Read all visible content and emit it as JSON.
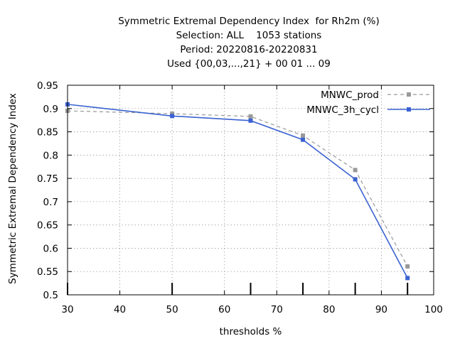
{
  "chart_data": {
    "type": "line",
    "title_lines": [
      "Symmetric Extremal Dependency Index  for Rh2m (%)",
      "Selection: ALL    1053 stations",
      "Period: 20220816-20220831",
      "Used {00,03,...,21} + 00 01 ... 09"
    ],
    "xlabel": "thresholds %",
    "ylabel": "Symmetric Extremal Dependency Index",
    "xlim": [
      30,
      100
    ],
    "ylim": [
      0.5,
      0.95
    ],
    "x_ticks": [
      30,
      40,
      50,
      60,
      70,
      80,
      90,
      100
    ],
    "y_ticks": [
      0.5,
      0.55,
      0.6,
      0.65,
      0.7,
      0.75,
      0.8,
      0.85,
      0.9,
      0.95
    ],
    "y_tick_labels": [
      "0.5",
      "0.55",
      "0.6",
      "0.65",
      "0.7",
      "0.75",
      "0.8",
      "0.85",
      "0.9",
      "0.95"
    ],
    "grid": true,
    "legend_position": "top-right",
    "threshold_markers_x": [
      30,
      50,
      65,
      75,
      85,
      95
    ],
    "series": [
      {
        "name": "MNWC_prod",
        "color": "#999999",
        "dashed": true,
        "x": [
          30,
          50,
          65,
          75,
          85,
          95
        ],
        "y": [
          0.895,
          0.889,
          0.883,
          0.842,
          0.768,
          0.561
        ]
      },
      {
        "name": "MNWC_3h_cycl",
        "color": "#3a62d1",
        "dashed": false,
        "x": [
          30,
          50,
          65,
          75,
          85,
          95
        ],
        "y": [
          0.909,
          0.884,
          0.874,
          0.833,
          0.748,
          0.536
        ]
      }
    ]
  }
}
